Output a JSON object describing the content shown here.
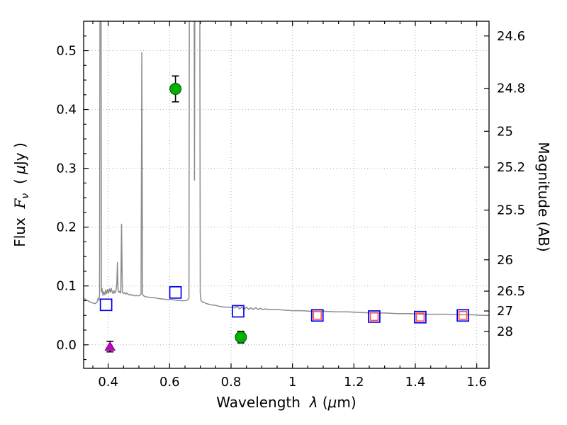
{
  "axes": {
    "xlabel": {
      "a": "Wavelength  ",
      "b": "λ",
      "c": " (",
      "d": "μ",
      "e": "m)"
    },
    "ylabel_left": {
      "a": "Flux  ",
      "b": "F",
      "c": "ν",
      "d": "  ( ",
      "e": "μ",
      "f": "Jy )"
    },
    "ylabel_right": "Magnitude (AB)"
  },
  "chart_data": {
    "type": "line+scatter",
    "title": "",
    "xlabel": "Wavelength λ (μm)",
    "ylabel_left": "Flux Fν ( μJy )",
    "ylabel_right": "Magnitude (AB)",
    "xlim": [
      0.32,
      1.64
    ],
    "ylim": [
      -0.04,
      0.55
    ],
    "grid": true,
    "frame_color": "#000000",
    "grid_color": "#b0b0b0",
    "xticks": [
      {
        "v": 0.4,
        "label": "0.4"
      },
      {
        "v": 0.6,
        "label": "0.6"
      },
      {
        "v": 0.8,
        "label": "0.8"
      },
      {
        "v": 1.0,
        "label": "1"
      },
      {
        "v": 1.2,
        "label": "1.2"
      },
      {
        "v": 1.4,
        "label": "1.4"
      },
      {
        "v": 1.6,
        "label": "1.6"
      }
    ],
    "yticks_left": [
      {
        "v": 0.0,
        "label": "0.0"
      },
      {
        "v": 0.1,
        "label": "0.1"
      },
      {
        "v": 0.2,
        "label": "0.2"
      },
      {
        "v": 0.3,
        "label": "0.3"
      },
      {
        "v": 0.4,
        "label": "0.4"
      },
      {
        "v": 0.5,
        "label": "0.5"
      }
    ],
    "yticks_right": [
      {
        "v": 0.525,
        "label": "24.6"
      },
      {
        "v": 0.436,
        "label": "24.8"
      },
      {
        "v": 0.363,
        "label": "25"
      },
      {
        "v": 0.302,
        "label": "25.2"
      },
      {
        "v": 0.229,
        "label": "25.5"
      },
      {
        "v": 0.1445,
        "label": "26"
      },
      {
        "v": 0.0912,
        "label": "26.5"
      },
      {
        "v": 0.0575,
        "label": "27"
      },
      {
        "v": 0.0229,
        "label": "28"
      }
    ],
    "series": [
      {
        "name": "model-spectrum",
        "type": "line",
        "color": "#8c8c8c",
        "width": 1.5,
        "points": [
          [
            0.32,
            0.079
          ],
          [
            0.33,
            0.076
          ],
          [
            0.34,
            0.073
          ],
          [
            0.35,
            0.071
          ],
          [
            0.358,
            0.07
          ],
          [
            0.364,
            0.073
          ],
          [
            0.367,
            0.079
          ],
          [
            0.37,
            0.076
          ],
          [
            0.372,
            0.086
          ],
          [
            0.3735,
            0.7
          ],
          [
            0.3765,
            0.7
          ],
          [
            0.378,
            0.09
          ],
          [
            0.38,
            0.096
          ],
          [
            0.383,
            0.084
          ],
          [
            0.386,
            0.09
          ],
          [
            0.389,
            0.085
          ],
          [
            0.392,
            0.093
          ],
          [
            0.395,
            0.087
          ],
          [
            0.398,
            0.094
          ],
          [
            0.401,
            0.088
          ],
          [
            0.404,
            0.095
          ],
          [
            0.407,
            0.089
          ],
          [
            0.41,
            0.096
          ],
          [
            0.413,
            0.09
          ],
          [
            0.416,
            0.087
          ],
          [
            0.419,
            0.092
          ],
          [
            0.422,
            0.088
          ],
          [
            0.425,
            0.091
          ],
          [
            0.428,
            0.103
          ],
          [
            0.43,
            0.14
          ],
          [
            0.432,
            0.094
          ],
          [
            0.435,
            0.089
          ],
          [
            0.438,
            0.091
          ],
          [
            0.441,
            0.088
          ],
          [
            0.4435,
            0.205
          ],
          [
            0.446,
            0.091
          ],
          [
            0.449,
            0.087
          ],
          [
            0.453,
            0.089
          ],
          [
            0.457,
            0.086
          ],
          [
            0.461,
            0.088
          ],
          [
            0.466,
            0.085
          ],
          [
            0.471,
            0.086
          ],
          [
            0.476,
            0.084
          ],
          [
            0.481,
            0.085
          ],
          [
            0.486,
            0.083
          ],
          [
            0.491,
            0.084
          ],
          [
            0.496,
            0.083
          ],
          [
            0.503,
            0.084
          ],
          [
            0.507,
            0.086
          ],
          [
            0.5095,
            0.497
          ],
          [
            0.512,
            0.086
          ],
          [
            0.516,
            0.083
          ],
          [
            0.52,
            0.082
          ],
          [
            0.53,
            0.081
          ],
          [
            0.54,
            0.08
          ],
          [
            0.55,
            0.08
          ],
          [
            0.56,
            0.079
          ],
          [
            0.575,
            0.078
          ],
          [
            0.59,
            0.077
          ],
          [
            0.605,
            0.077
          ],
          [
            0.62,
            0.076
          ],
          [
            0.635,
            0.075
          ],
          [
            0.65,
            0.075
          ],
          [
            0.658,
            0.076
          ],
          [
            0.663,
            0.079
          ],
          [
            0.6645,
            0.7
          ],
          [
            0.6795,
            0.7
          ],
          [
            0.681,
            0.28
          ],
          [
            0.6825,
            0.7
          ],
          [
            0.698,
            0.7
          ],
          [
            0.6995,
            0.088
          ],
          [
            0.702,
            0.076
          ],
          [
            0.706,
            0.073
          ],
          [
            0.712,
            0.072
          ],
          [
            0.72,
            0.07
          ],
          [
            0.735,
            0.068
          ],
          [
            0.75,
            0.067
          ],
          [
            0.765,
            0.065
          ],
          [
            0.78,
            0.064
          ],
          [
            0.795,
            0.064
          ],
          [
            0.81,
            0.063
          ],
          [
            0.82,
            0.065
          ],
          [
            0.828,
            0.061
          ],
          [
            0.835,
            0.064
          ],
          [
            0.842,
            0.06
          ],
          [
            0.85,
            0.064
          ],
          [
            0.858,
            0.06
          ],
          [
            0.865,
            0.063
          ],
          [
            0.872,
            0.06
          ],
          [
            0.88,
            0.063
          ],
          [
            0.888,
            0.06
          ],
          [
            0.895,
            0.062
          ],
          [
            0.903,
            0.06
          ],
          [
            0.912,
            0.061
          ],
          [
            0.922,
            0.06
          ],
          [
            0.935,
            0.06
          ],
          [
            0.95,
            0.06
          ],
          [
            0.97,
            0.059
          ],
          [
            1.0,
            0.058
          ],
          [
            1.03,
            0.058
          ],
          [
            1.06,
            0.057
          ],
          [
            1.1,
            0.057
          ],
          [
            1.14,
            0.056
          ],
          [
            1.18,
            0.056
          ],
          [
            1.22,
            0.055
          ],
          [
            1.26,
            0.054
          ],
          [
            1.3,
            0.054
          ],
          [
            1.34,
            0.053
          ],
          [
            1.38,
            0.053
          ],
          [
            1.42,
            0.052
          ],
          [
            1.46,
            0.052
          ],
          [
            1.5,
            0.052
          ],
          [
            1.54,
            0.051
          ],
          [
            1.58,
            0.051
          ],
          [
            1.62,
            0.05
          ],
          [
            1.64,
            0.05
          ]
        ]
      },
      {
        "name": "model-photometry-blue-squares",
        "type": "scatter",
        "marker": "square-open",
        "color": "#0000ee",
        "half_size": 8,
        "stroke_width": 1.7,
        "points": [
          [
            0.393,
            0.068
          ],
          [
            0.619,
            0.089
          ],
          [
            0.823,
            0.057
          ],
          [
            1.081,
            0.05
          ],
          [
            1.266,
            0.048
          ],
          [
            1.416,
            0.047
          ],
          [
            1.555,
            0.05
          ]
        ]
      },
      {
        "name": "observed-photometry-red-squares",
        "type": "scatter",
        "marker": "square-open",
        "color": "#ff5050",
        "half_size": 5.5,
        "stroke_width": 1.7,
        "points": [
          [
            1.081,
            0.05
          ],
          [
            1.266,
            0.048
          ],
          [
            1.416,
            0.047
          ],
          [
            1.555,
            0.05
          ]
        ]
      },
      {
        "name": "observed-photometry-green-circles",
        "type": "scatter",
        "marker": "circle",
        "fill": "#00b200",
        "edge": "#004d00",
        "half_size": 8,
        "errorbars": true,
        "error_color": "#000000",
        "points": [
          [
            0.619,
            0.435,
            0.022
          ],
          [
            0.832,
            0.013,
            0.01
          ]
        ]
      },
      {
        "name": "upper-limit-magenta-triangle",
        "type": "scatter",
        "marker": "triangle",
        "fill": "#c800c8",
        "edge": "#780078",
        "half_size": 7,
        "errorbars": true,
        "error_color": "#000000",
        "points": [
          [
            0.406,
            -0.003,
            0.009
          ]
        ]
      }
    ]
  }
}
